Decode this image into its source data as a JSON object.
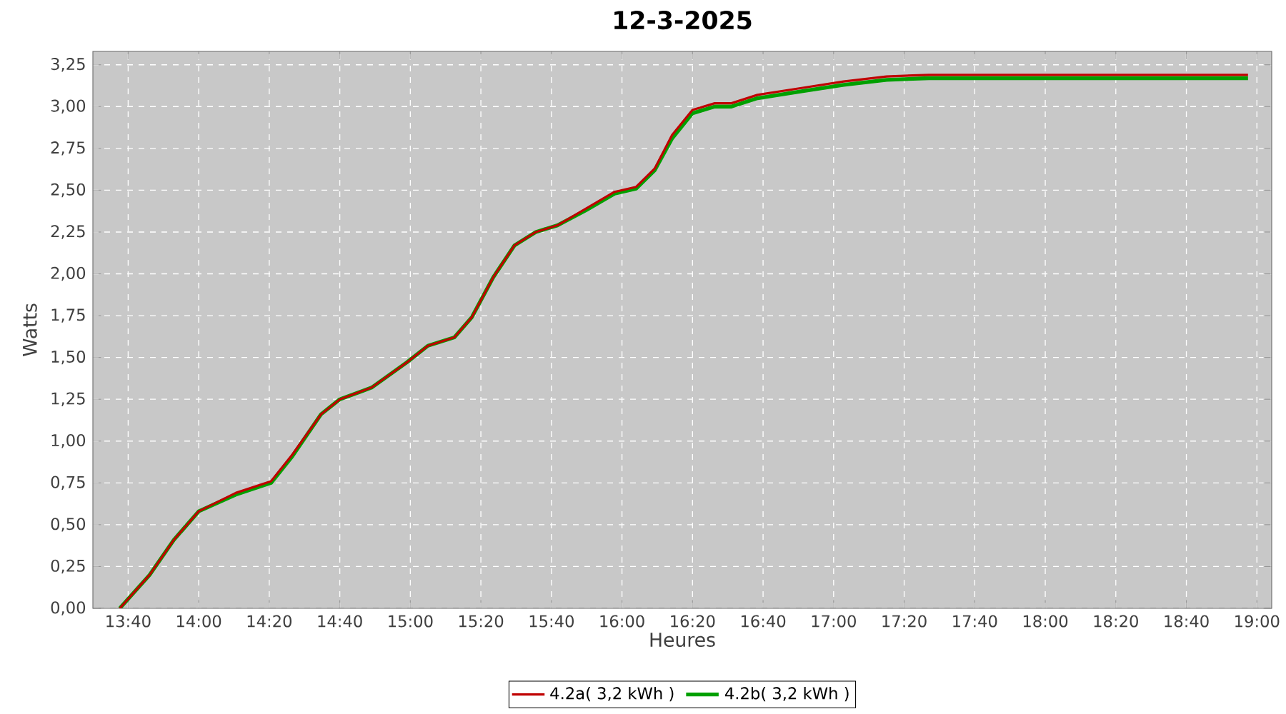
{
  "chart_data": {
    "type": "line",
    "title": "12-3-2025",
    "xlabel": "Heures",
    "ylabel": "Watts",
    "x": [
      13.627,
      13.768,
      13.883,
      14.0,
      14.175,
      14.342,
      14.443,
      14.578,
      14.667,
      14.817,
      14.983,
      15.083,
      15.208,
      15.29,
      15.392,
      15.492,
      15.593,
      15.695,
      15.83,
      15.965,
      16.067,
      16.155,
      16.237,
      16.333,
      16.438,
      16.517,
      16.64,
      16.843,
      17.047,
      17.25,
      17.45,
      18.958
    ],
    "series": [
      {
        "name": "4.2a( 3,2 kWh )",
        "color": "#c00000",
        "values": [
          0,
          0.2,
          0.41,
          0.58,
          0.69,
          0.76,
          0.92,
          1.16,
          1.25,
          1.32,
          1.47,
          1.57,
          1.62,
          1.74,
          1.98,
          2.17,
          2.25,
          2.29,
          2.39,
          2.49,
          2.52,
          2.63,
          2.83,
          2.98,
          3.02,
          3.02,
          3.07,
          3.11,
          3.15,
          3.18,
          3.19,
          3.19
        ]
      },
      {
        "name": "4.2b( 3,2 kWh )",
        "color": "#00a000",
        "values": [
          0,
          0.2,
          0.41,
          0.58,
          0.68,
          0.75,
          0.91,
          1.16,
          1.25,
          1.32,
          1.47,
          1.57,
          1.62,
          1.74,
          1.98,
          2.17,
          2.25,
          2.29,
          2.38,
          2.48,
          2.51,
          2.62,
          2.81,
          2.96,
          3.0,
          3.0,
          3.05,
          3.09,
          3.13,
          3.16,
          3.17,
          3.17
        ]
      }
    ],
    "xlim": [
      13.5,
      19.07
    ],
    "ylim": [
      0,
      3.33
    ],
    "xticks": [
      {
        "value": 13.6667,
        "label": "13:40"
      },
      {
        "value": 14.0,
        "label": "14:00"
      },
      {
        "value": 14.3333,
        "label": "14:20"
      },
      {
        "value": 14.6667,
        "label": "14:40"
      },
      {
        "value": 15.0,
        "label": "15:00"
      },
      {
        "value": 15.3333,
        "label": "15:20"
      },
      {
        "value": 15.6667,
        "label": "15:40"
      },
      {
        "value": 16.0,
        "label": "16:00"
      },
      {
        "value": 16.3333,
        "label": "16:20"
      },
      {
        "value": 16.6667,
        "label": "16:40"
      },
      {
        "value": 17.0,
        "label": "17:00"
      },
      {
        "value": 17.3333,
        "label": "17:20"
      },
      {
        "value": 17.6667,
        "label": "17:40"
      },
      {
        "value": 18.0,
        "label": "18:00"
      },
      {
        "value": 18.3333,
        "label": "18:20"
      },
      {
        "value": 18.6667,
        "label": "18:40"
      },
      {
        "value": 19.0,
        "label": "19:00"
      }
    ],
    "yticks": [
      {
        "value": 0,
        "label": "0,00"
      },
      {
        "value": 0.25,
        "label": "0,25"
      },
      {
        "value": 0.5,
        "label": "0,50"
      },
      {
        "value": 0.75,
        "label": "0,75"
      },
      {
        "value": 1.0,
        "label": "1,00"
      },
      {
        "value": 1.25,
        "label": "1,25"
      },
      {
        "value": 1.5,
        "label": "1,50"
      },
      {
        "value": 1.75,
        "label": "1,75"
      },
      {
        "value": 2.0,
        "label": "2,00"
      },
      {
        "value": 2.25,
        "label": "2,25"
      },
      {
        "value": 2.5,
        "label": "2,50"
      },
      {
        "value": 2.75,
        "label": "2,75"
      },
      {
        "value": 3.0,
        "label": "3,00"
      },
      {
        "value": 3.25,
        "label": "3,25"
      }
    ],
    "grid": true,
    "legend": "bottom",
    "marker": "none",
    "line_style": "solid"
  }
}
